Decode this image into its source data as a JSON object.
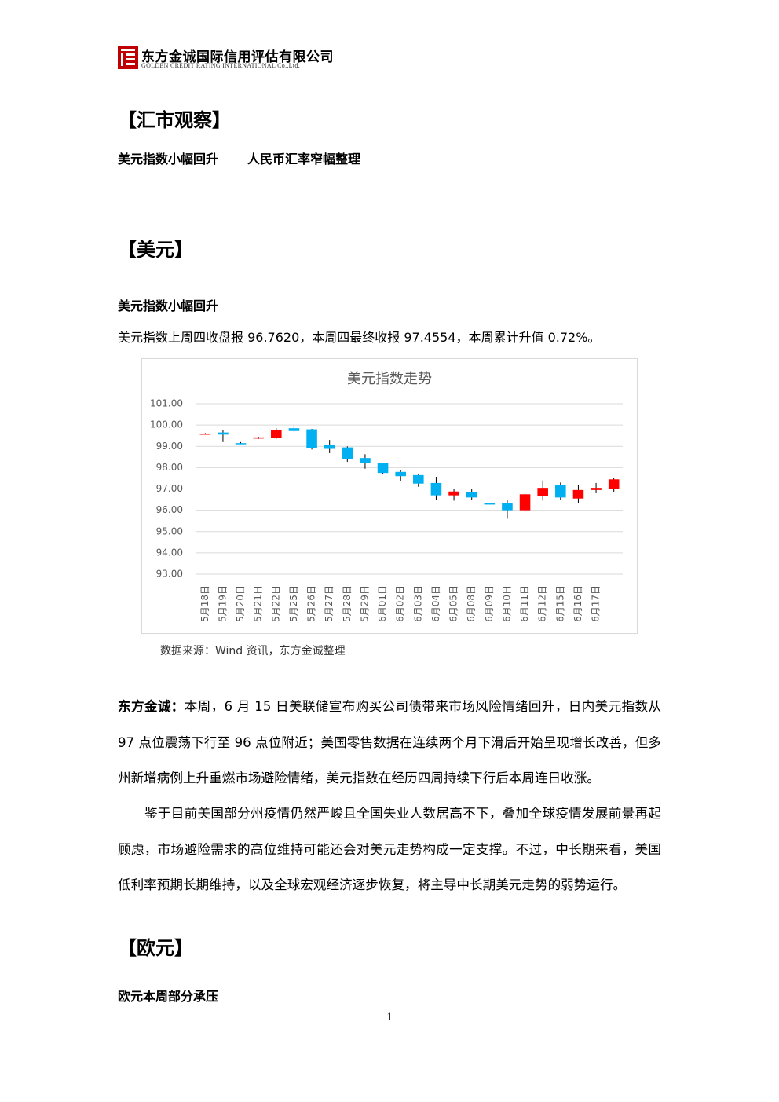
{
  "header": {
    "company": "东方金诚国际信用评估有限公司",
    "company_en": "GOLDEN CREDIT RATING INTERNATIONAL Co.,Ltd."
  },
  "title": "【汇市观察】",
  "subtitle": [
    "美元指数小幅回升",
    "人民币汇率窄幅整理"
  ],
  "section_usd": {
    "heading": "【美元】",
    "subheading": "美元指数小幅回升",
    "summary": "美元指数上周四收盘报 96.7620，本周四最终收报 97.4554，本周累计升值 0.72%。",
    "source": "数据来源：Wind 资讯，东方金诚整理",
    "comment_label": "东方金诚：",
    "comment": "本周，6 月 15 日美联储宣布购买公司债带来市场风险情绪回升，日内美元指数从 97 点位震荡下行至 96 点位附近；美国零售数据在连续两个月下滑后开始呈现增长改善，但多州新增病例上升重燃市场避险情绪，美元指数在经历四周持续下行后本周连日收涨。",
    "paragraph2": "鉴于目前美国部分州疫情仍然严峻且全国失业人数居高不下，叠加全球疫情发展前景再起顾虑，市场避险需求的高位维持可能还会对美元走势构成一定支撑。不过，中长期来看，美国低利率预期长期维持，以及全球宏观经济逐步恢复，将主导中长期美元走势的弱势运行。"
  },
  "section_eur": {
    "heading": "【欧元】",
    "subheading": "欧元本周部分承压"
  },
  "page_number": "1",
  "chart_data": {
    "type": "candlestick",
    "title": "美元指数走势",
    "categories": [
      "5月18日",
      "5月19日",
      "5月20日",
      "5月21日",
      "5月22日",
      "5月25日",
      "5月26日",
      "5月27日",
      "5月28日",
      "5月29日",
      "6月01日",
      "6月02日",
      "6月03日",
      "6月04日",
      "6月05日",
      "6月08日",
      "6月09日",
      "6月10日",
      "6月11日",
      "6月12日",
      "6月15日",
      "6月16日",
      "6月17日",
      null
    ],
    "open": [
      99.6,
      99.65,
      99.15,
      99.38,
      99.38,
      99.85,
      99.8,
      99.05,
      98.95,
      98.45,
      98.2,
      97.8,
      97.65,
      97.28,
      96.7,
      96.85,
      96.32,
      96.35,
      96.0,
      96.65,
      97.2,
      96.55,
      96.95,
      97.0
    ],
    "high": [
      99.62,
      99.75,
      99.2,
      99.45,
      99.85,
      99.98,
      99.82,
      99.3,
      99.0,
      98.63,
      98.22,
      97.9,
      97.72,
      97.57,
      97.0,
      97.0,
      96.34,
      96.48,
      96.8,
      97.4,
      97.3,
      97.2,
      97.28,
      97.5
    ],
    "low": [
      99.58,
      99.2,
      99.1,
      99.35,
      99.35,
      99.65,
      98.85,
      98.68,
      98.27,
      97.95,
      97.7,
      97.38,
      97.1,
      96.5,
      96.45,
      96.5,
      96.28,
      95.6,
      95.9,
      96.45,
      96.5,
      96.35,
      96.8,
      96.85
    ],
    "close": [
      99.6,
      99.55,
      99.12,
      99.42,
      99.75,
      99.72,
      98.9,
      98.88,
      98.4,
      98.2,
      97.75,
      97.6,
      97.25,
      96.7,
      96.88,
      96.6,
      96.3,
      96.0,
      96.75,
      97.05,
      96.6,
      96.95,
      97.05,
      97.45
    ],
    "up_color": "#ff0000",
    "down_color": "#00b0f0",
    "ylim": [
      93,
      101
    ],
    "yticks": [
      {
        "value": 93,
        "label": "93.00"
      },
      {
        "value": 94,
        "label": "94.00"
      },
      {
        "value": 95,
        "label": "95.00"
      },
      {
        "value": 96,
        "label": "96.00"
      },
      {
        "value": 97,
        "label": "97.00"
      },
      {
        "value": 98,
        "label": "98.00"
      },
      {
        "value": 99,
        "label": "99.00"
      },
      {
        "value": 100,
        "label": "100.00"
      },
      {
        "value": 101,
        "label": "101.00"
      }
    ],
    "grid": true
  }
}
